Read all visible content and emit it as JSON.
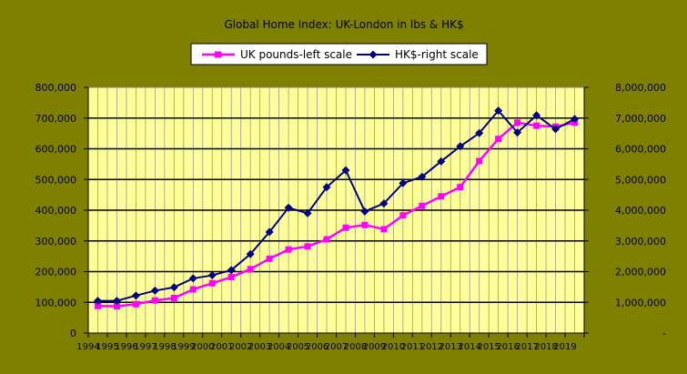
{
  "chart_data": {
    "type": "line",
    "title": "Global Home Index: UK-London in lbs & HK$",
    "x": [
      "1994",
      "1995",
      "1996",
      "1997",
      "1998",
      "1999",
      "2000",
      "2001",
      "2002",
      "2003",
      "2004",
      "2005",
      "2006",
      "2007",
      "2008",
      "2009",
      "2010",
      "2011",
      "2012",
      "2013",
      "2014",
      "2015",
      "2016",
      "2017",
      "2018",
      "2019"
    ],
    "series": [
      {
        "name": "UK pounds-left scale",
        "axis": "left",
        "color": "#FF00FF",
        "marker": "square",
        "values": [
          88000,
          87000,
          94000,
          106000,
          114000,
          142000,
          162000,
          182000,
          208000,
          242000,
          272000,
          282000,
          305000,
          343000,
          352000,
          338000,
          383000,
          414000,
          445000,
          475000,
          560000,
          632000,
          685000,
          675000,
          672000,
          685000
        ]
      },
      {
        "name": "HK$-right scale",
        "axis": "right",
        "color": "#000080",
        "marker": "diamond",
        "values": [
          1050000,
          1050000,
          1220000,
          1380000,
          1490000,
          1780000,
          1880000,
          2050000,
          2570000,
          3290000,
          4080000,
          3900000,
          4750000,
          5300000,
          3960000,
          4220000,
          4880000,
          5090000,
          5590000,
          6080000,
          6510000,
          7240000,
          6530000,
          7090000,
          6640000,
          6970000
        ]
      }
    ],
    "y_left": {
      "min": 0,
      "max": 800000,
      "ticks": [
        "0",
        "100,000",
        "200,000",
        "300,000",
        "400,000",
        "500,000",
        "600,000",
        "700,000",
        "800,000"
      ]
    },
    "y_right": {
      "min": 0,
      "max": 8000000,
      "ticks": [
        "-",
        "1,000,000",
        "2,000,000",
        "3,000,000",
        "4,000,000",
        "5,000,000",
        "6,000,000",
        "7,000,000",
        "8,000,000"
      ]
    },
    "x_tick_labels": [
      "1994",
      "1995",
      "1996",
      "1997",
      "1998",
      "1999",
      "2000",
      "2001",
      "2002",
      "2003",
      "2004",
      "2005",
      "2006",
      "2007",
      "2008",
      "2009",
      "2010",
      "2011",
      "2012",
      "2013",
      "2014",
      "2015",
      "2016",
      "2017",
      "2018",
      "2019"
    ],
    "legend_position": "top-center",
    "grid": true,
    "colors": {
      "background": "#808000",
      "plot_area": "#FFFF99",
      "gridline": "#000000"
    }
  }
}
